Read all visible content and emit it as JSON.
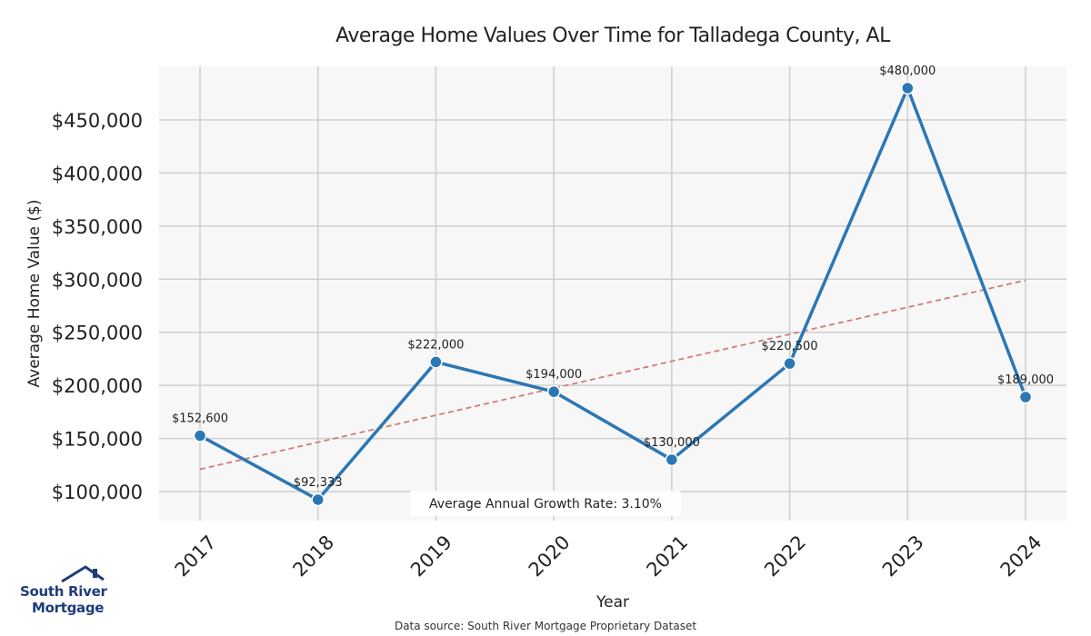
{
  "chart_data": {
    "type": "line",
    "title": "Average Home Values Over Time for Talladega County, AL",
    "xlabel": "Year",
    "ylabel": "Average Home Value ($)",
    "categories": [
      "2017",
      "2018",
      "2019",
      "2020",
      "2021",
      "2022",
      "2023",
      "2024"
    ],
    "values": [
      152600,
      92333,
      222000,
      194000,
      130000,
      220500,
      480000,
      189000
    ],
    "data_labels": [
      "$152,600",
      "$92,333",
      "$222,000",
      "$194,000",
      "$130,000",
      "$220,500",
      "$480,000",
      "$189,000"
    ],
    "y_ticks": [
      100000,
      150000,
      200000,
      250000,
      300000,
      350000,
      400000,
      450000
    ],
    "y_tick_labels": [
      "$100,000",
      "$150,000",
      "$200,000",
      "$250,000",
      "$300,000",
      "$350,000",
      "$400,000",
      "$450,000"
    ],
    "ylim": [
      72000,
      492000
    ],
    "trend_line": {
      "start": 121000,
      "end": 299000,
      "style": "dashed"
    },
    "grid": true,
    "annotation": "Average Annual Growth Rate: 3.10%",
    "colors": {
      "line": "#2b77b5",
      "trend": "#d47a7a",
      "plot_bg": "#f7f7f7",
      "grid": "#cfcfcf"
    }
  },
  "logo": {
    "line1": "South River",
    "line2": "Mortgage"
  },
  "footer": {
    "source": "Data source: South River Mortgage Proprietary Dataset"
  }
}
